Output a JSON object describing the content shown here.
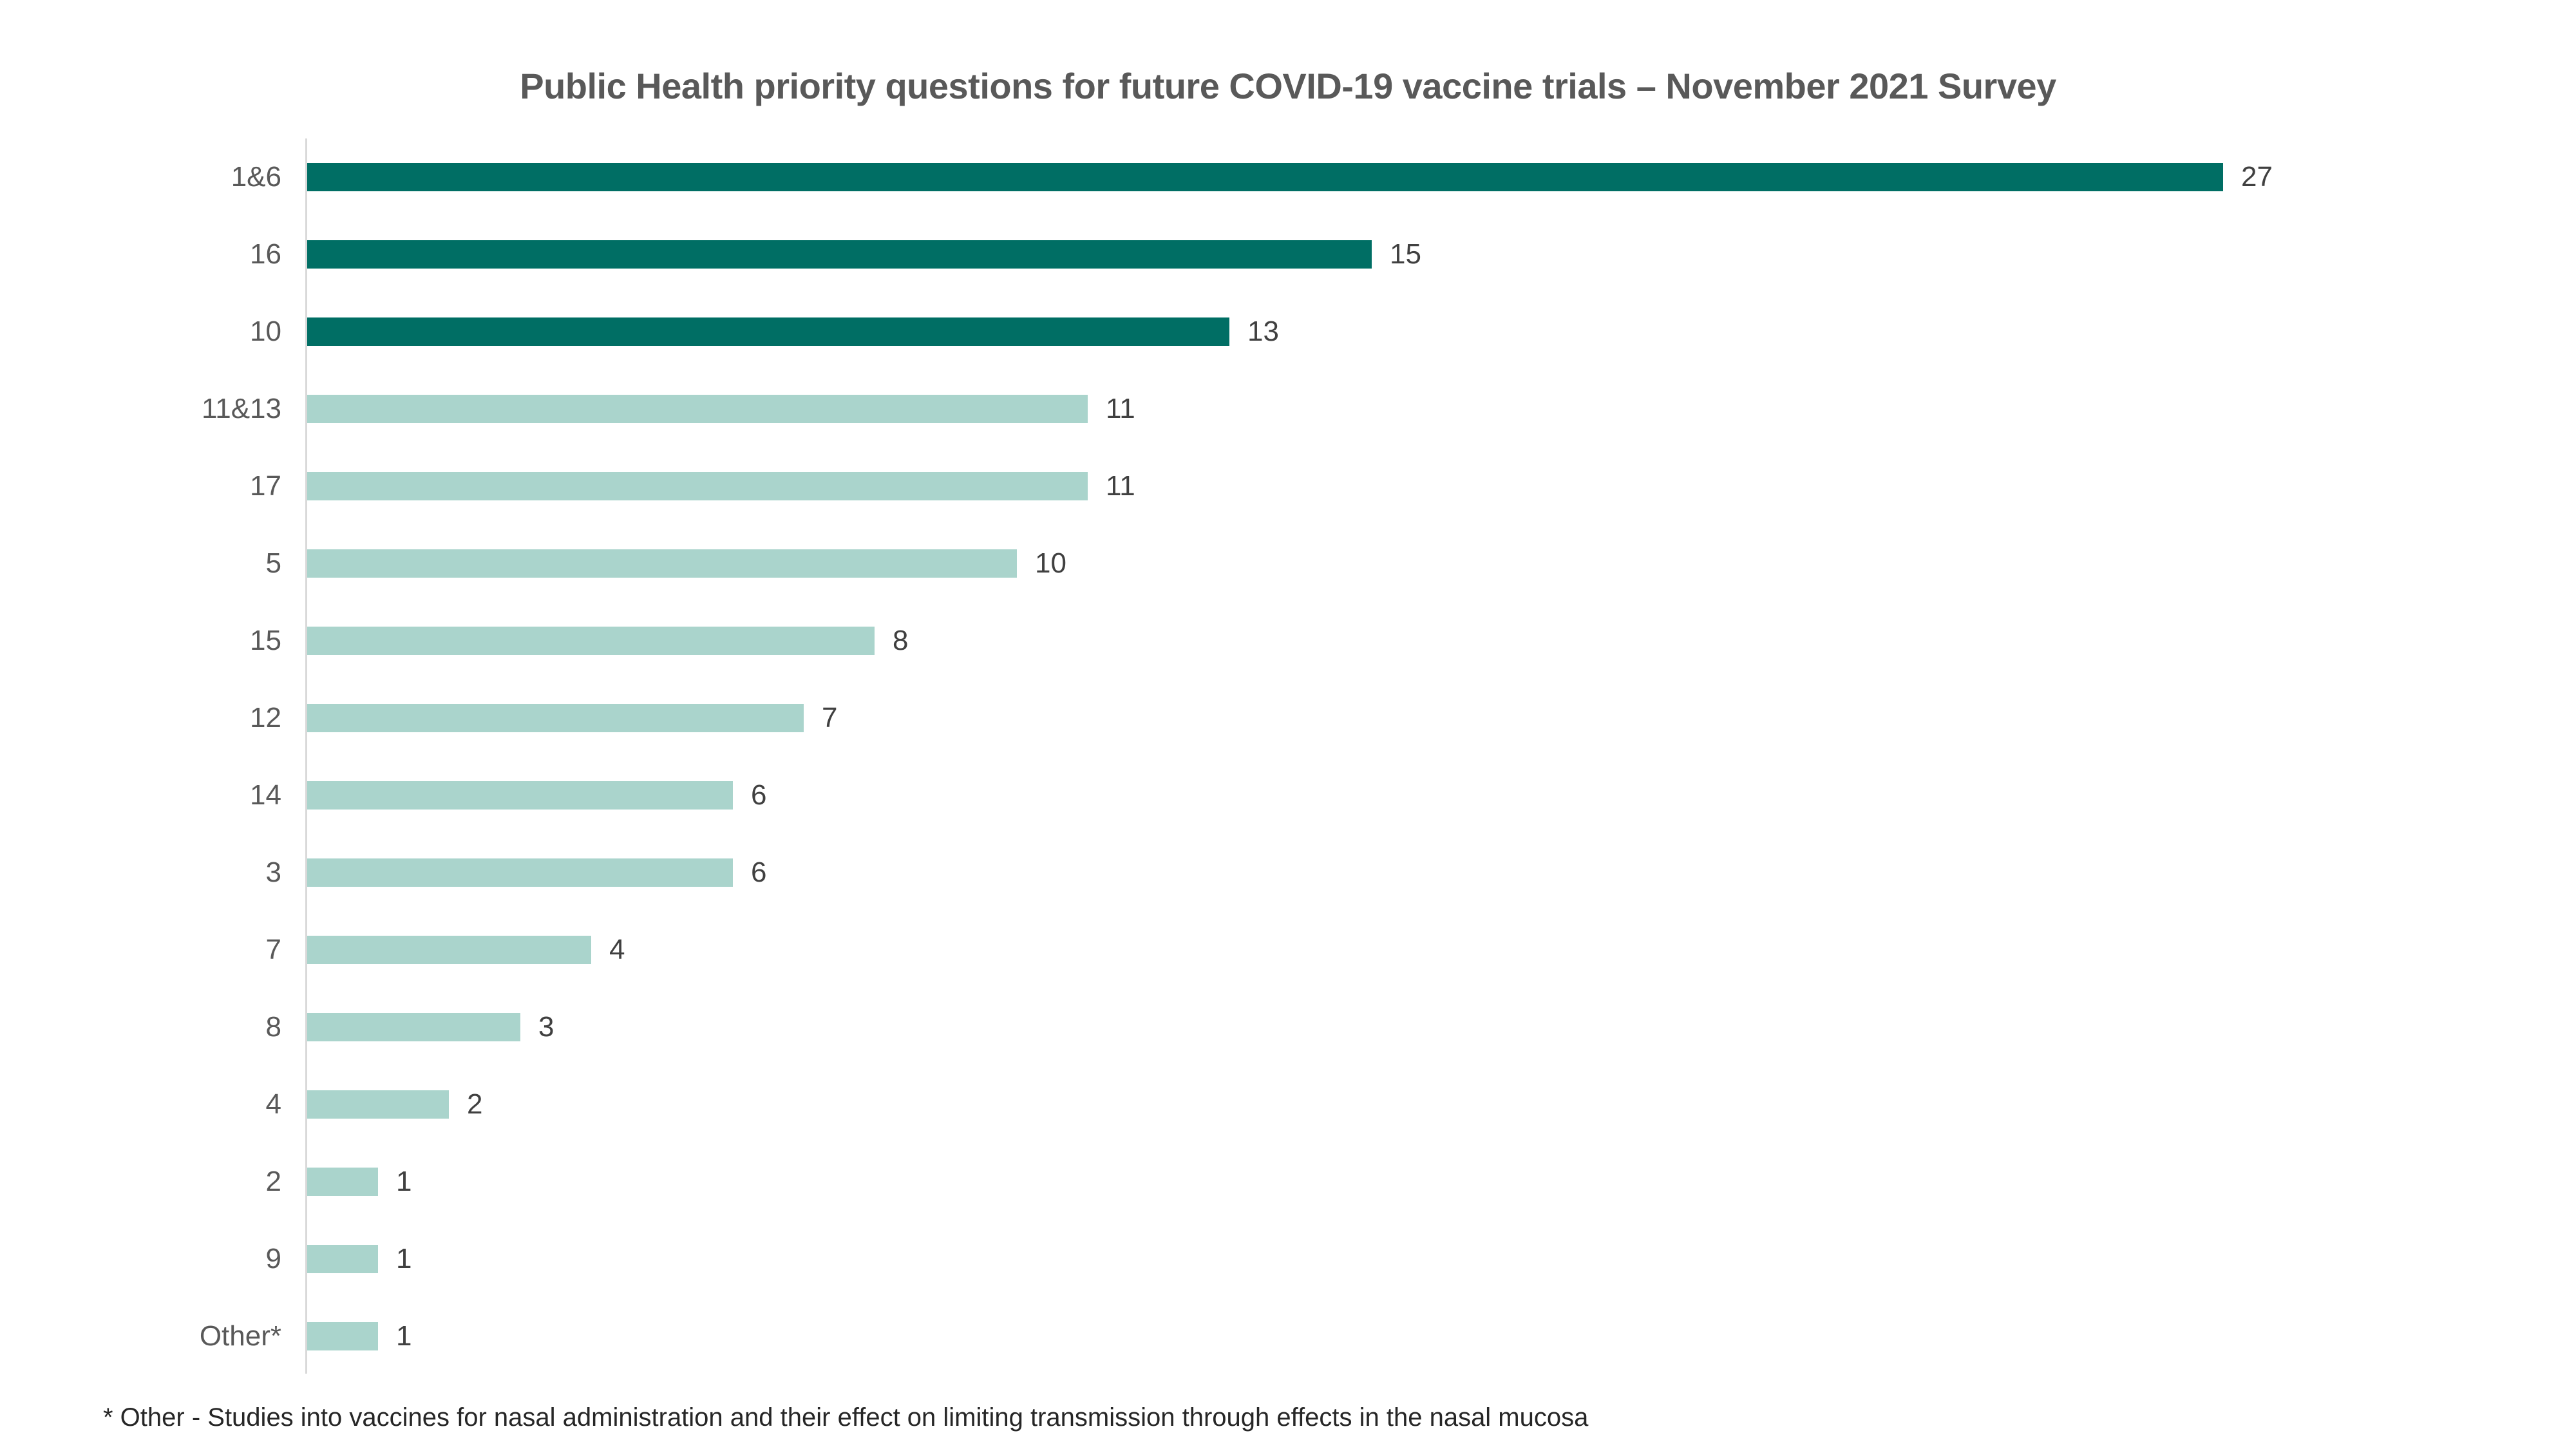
{
  "title": "Public Health priority questions for future COVID-19 vaccine trials – November 2021 Survey",
  "footnote": "* Other - Studies into vaccines for nasal administration and their effect on limiting transmission through effects in the nasal mucosa",
  "chart_data": {
    "type": "bar",
    "orientation": "horizontal",
    "title": "Public Health priority questions for future COVID-19 vaccine trials – November 2021 Survey",
    "categories": [
      "1&6",
      "16",
      "10",
      "11&13",
      "17",
      "5",
      "15",
      "12",
      "14",
      "3",
      "7",
      "8",
      "4",
      "2",
      "9",
      "Other*"
    ],
    "values": [
      27,
      15,
      13,
      11,
      11,
      10,
      8,
      7,
      6,
      6,
      4,
      3,
      2,
      1,
      1,
      1
    ],
    "xlabel": "",
    "ylabel": "",
    "xlim": [
      0,
      27
    ],
    "grid": false,
    "legend": false,
    "data_labels": true,
    "colors": {
      "highlight": "#006E64",
      "default": "#AAD4CC",
      "highlight_indices": [
        0,
        1,
        2
      ]
    },
    "style": {
      "axis_line_color": "#D9D9D9",
      "category_label_color": "#595959",
      "value_label_color": "#404040",
      "title_color": "#595959",
      "footnote_color": "#262626"
    }
  }
}
